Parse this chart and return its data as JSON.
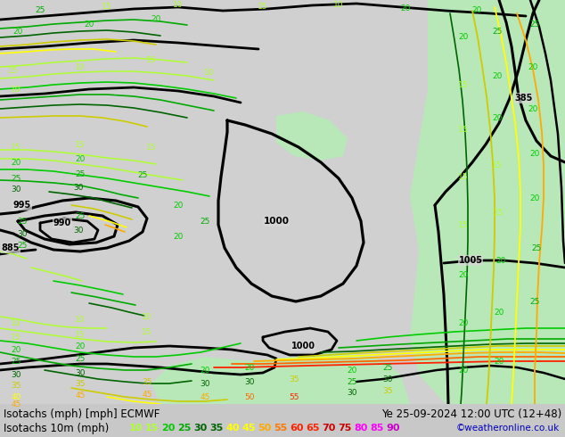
{
  "title_line1": "Isotachs (mph) [mph] ECMWF",
  "title_line2": "Isotachs 10m (mph)",
  "date_str": "Ye 25-09-2024 12:00 UTC (12+48)",
  "credit": "©weatheronline.co.uk",
  "legend_values": [
    10,
    15,
    20,
    25,
    30,
    35,
    40,
    45,
    50,
    55,
    60,
    65,
    70,
    75,
    80,
    85,
    90
  ],
  "legend_colors": [
    "#adff2f",
    "#adff2f",
    "#00cc00",
    "#00aa00",
    "#006400",
    "#006400",
    "#ffff00",
    "#ffff00",
    "#ffaa00",
    "#ff7700",
    "#ff2200",
    "#ff2200",
    "#cc0000",
    "#cc0000",
    "#ff00ff",
    "#ff00ff",
    "#cc00cc"
  ],
  "bg_color": "#d0d0d0",
  "map_bg": "#d8d8d8",
  "green_fill": "#b8e8b8",
  "footer_bg": "#c8c8c8",
  "fig_width": 6.34,
  "fig_height": 4.9,
  "dpi": 100
}
